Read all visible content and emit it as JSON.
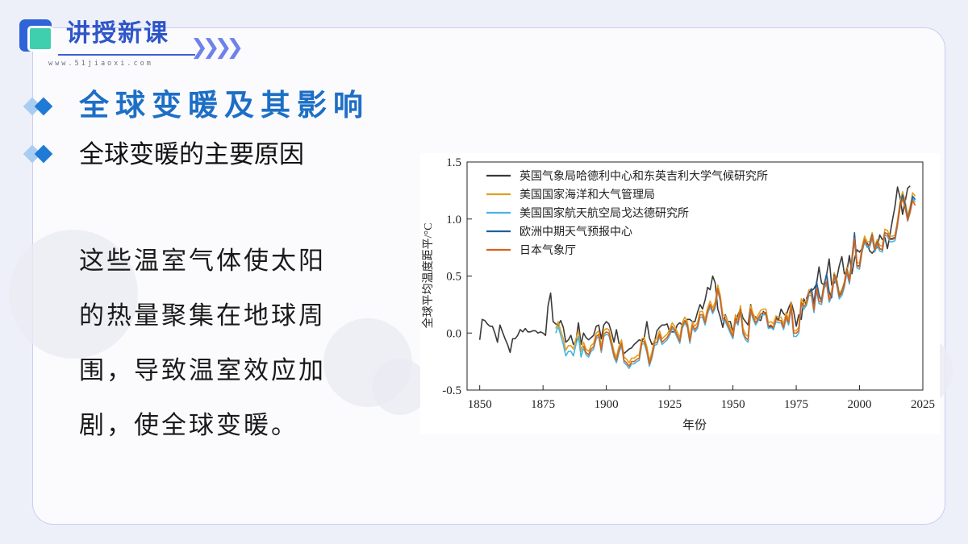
{
  "header": {
    "title": "讲授新课",
    "url": "www.51jiaoxi.com",
    "chevrons": "❯❯❯❯"
  },
  "headings": {
    "main": "全球变暖及其影响",
    "sub": "全球变暖的主要原因"
  },
  "body": {
    "text": "这些温室气体使太阳的热量聚集在地球周围，导致温室效应加剧，使全球变暖。"
  },
  "colors": {
    "accent_blue": "#1d6fc6",
    "header_blue": "#2f56c8",
    "logo_green": "#3fcfae"
  },
  "chart_data": {
    "type": "line",
    "xlabel": "年份",
    "ylabel": "全球平均温度距平/°C",
    "xlim": [
      1845,
      2025
    ],
    "ylim": [
      -0.5,
      1.5
    ],
    "x_ticks": [
      "1850",
      "1875",
      "1900",
      "1925",
      "1950",
      "1975",
      "2000",
      "2025"
    ],
    "y_ticks": [
      "1.5",
      "1.0",
      "0.5",
      "0.0",
      "-0.5"
    ],
    "grid": false,
    "legend_position": "top-left",
    "series": [
      {
        "name": "英国气象局哈德利中心和东英吉利大学气候研究所",
        "color": "#3a3a3a",
        "start_year": 1850,
        "values": [
          -0.06,
          0.12,
          0.11,
          0.08,
          0.06,
          0.06,
          0.0,
          -0.08,
          0.07,
          0.01,
          -0.05,
          -0.1,
          -0.17,
          -0.05,
          -0.05,
          -0.02,
          0.03,
          0.01,
          0.04,
          0.01,
          0.01,
          0.02,
          0.02,
          0.0,
          0.01,
          0.0,
          -0.02,
          0.24,
          0.35,
          0.1,
          0.08,
          0.07,
          0.11,
          0.05,
          -0.08,
          -0.06,
          -0.02,
          -0.1,
          -0.07,
          0.09,
          -0.1,
          0.0,
          -0.04,
          -0.06,
          -0.04,
          -0.02,
          0.06,
          0.07,
          -0.05,
          0.07,
          0.1,
          0.08,
          0.01,
          -0.08,
          0.03,
          -0.09,
          -0.11,
          -0.18,
          -0.16,
          -0.14,
          -0.13,
          -0.1,
          -0.08,
          -0.06,
          -0.07,
          -0.04,
          0.1,
          -0.04,
          -0.1,
          -0.08,
          0.02,
          0.05,
          0.07,
          0.07,
          0.08,
          0.01,
          0.01,
          0.01,
          0.07,
          0.09,
          0.07,
          0.09,
          0.12,
          0.12,
          0.1,
          0.1,
          0.18,
          0.25,
          0.21,
          0.29,
          0.4,
          0.38,
          0.5,
          0.44,
          0.21,
          0.14,
          0.05,
          0.16,
          0.1,
          0.1,
          0.01,
          0.09,
          0.16,
          0.21,
          0.13,
          0.1,
          0.07,
          0.25,
          0.15,
          0.14,
          0.12,
          0.11,
          0.19,
          0.16,
          0.05,
          0.06,
          0.03,
          0.14,
          0.11,
          0.21,
          0.17,
          0.15,
          0.22,
          0.27,
          0.19,
          0.06,
          0.16,
          0.12,
          0.3,
          0.25,
          0.36,
          0.37,
          0.39,
          0.43,
          0.58,
          0.44,
          0.42,
          0.51,
          0.65,
          0.42,
          0.44,
          0.48,
          0.59,
          0.67,
          0.52,
          0.54,
          0.68,
          0.52,
          0.65,
          0.73,
          0.71,
          0.74,
          0.79,
          0.79,
          0.72,
          0.7,
          0.73,
          0.75,
          0.86,
          0.82,
          0.84,
          0.74,
          0.86,
          0.99,
          1.11,
          1.28,
          1.19,
          1.04,
          1.15,
          1.27,
          1.29
        ]
      },
      {
        "name": "美国国家海洋和大气管理局",
        "color": "#e0a020",
        "start_year": 1880,
        "values": [
          0.04,
          0.1,
          0.02,
          -0.05,
          -0.15,
          -0.11,
          -0.11,
          -0.14,
          -0.05,
          0.02,
          -0.16,
          -0.08,
          -0.14,
          -0.16,
          -0.11,
          -0.09,
          0.0,
          0.02,
          -0.12,
          0.02,
          0.04,
          0.03,
          -0.06,
          -0.16,
          -0.21,
          -0.12,
          -0.06,
          -0.21,
          -0.23,
          -0.26,
          -0.22,
          -0.22,
          -0.2,
          -0.19,
          -0.05,
          -0.04,
          -0.12,
          -0.24,
          -0.17,
          -0.06,
          -0.05,
          0.02,
          -0.05,
          -0.03,
          -0.01,
          0.03,
          0.09,
          0.06,
          0.01,
          -0.04,
          0.09,
          0.14,
          0.1,
          -0.04,
          0.1,
          0.06,
          0.09,
          0.19,
          0.19,
          0.12,
          0.22,
          0.28,
          0.22,
          0.27,
          0.42,
          0.33,
          0.16,
          0.15,
          0.1,
          0.05,
          0.0,
          0.16,
          0.12,
          0.24,
          0.04,
          -0.01,
          -0.03,
          0.24,
          0.17,
          0.12,
          0.16,
          0.2,
          0.21,
          0.21,
          0.09,
          0.1,
          0.08,
          0.15,
          0.14,
          0.14,
          0.08,
          0.18,
          0.12,
          0.27,
          0.02,
          0.02,
          0.05,
          0.3,
          0.26,
          0.29,
          0.38,
          0.38,
          0.23,
          0.42,
          0.31,
          0.3,
          0.44,
          0.48,
          0.32,
          0.37,
          0.53,
          0.47,
          0.35,
          0.38,
          0.45,
          0.58,
          0.48,
          0.66,
          0.86,
          0.62,
          0.61,
          0.76,
          0.85,
          0.8,
          0.8,
          0.88,
          0.76,
          0.82,
          0.77,
          0.76,
          0.91,
          0.9,
          0.85,
          0.85,
          0.86,
          0.99,
          1.15,
          1.24,
          1.16,
          1.03,
          1.11,
          1.23,
          1.2
        ]
      },
      {
        "name": "美国国家航天航空局戈达德研究所",
        "color": "#49b4e0",
        "start_year": 1880,
        "values": [
          0.0,
          0.06,
          -0.02,
          -0.1,
          -0.2,
          -0.16,
          -0.16,
          -0.2,
          -0.1,
          -0.03,
          -0.21,
          -0.13,
          -0.19,
          -0.21,
          -0.16,
          -0.14,
          -0.05,
          -0.03,
          -0.17,
          -0.03,
          -0.01,
          -0.02,
          -0.11,
          -0.21,
          -0.26,
          -0.17,
          -0.11,
          -0.26,
          -0.28,
          -0.31,
          -0.27,
          -0.27,
          -0.25,
          -0.24,
          -0.1,
          -0.09,
          -0.17,
          -0.29,
          -0.22,
          -0.11,
          -0.1,
          -0.03,
          -0.1,
          -0.08,
          -0.06,
          -0.02,
          0.04,
          0.01,
          -0.04,
          -0.09,
          0.04,
          0.09,
          0.05,
          -0.09,
          0.05,
          0.01,
          0.04,
          0.14,
          0.14,
          0.07,
          0.17,
          0.23,
          0.17,
          0.22,
          0.37,
          0.28,
          0.11,
          0.1,
          0.05,
          0.0,
          -0.05,
          0.11,
          0.07,
          0.19,
          -0.01,
          -0.06,
          -0.08,
          0.19,
          0.12,
          0.07,
          0.11,
          0.15,
          0.16,
          0.16,
          0.04,
          0.05,
          0.03,
          0.1,
          0.09,
          0.09,
          0.03,
          0.13,
          0.07,
          0.22,
          -0.03,
          -0.03,
          0.0,
          0.25,
          0.21,
          0.24,
          0.33,
          0.33,
          0.18,
          0.37,
          0.26,
          0.25,
          0.39,
          0.43,
          0.27,
          0.32,
          0.48,
          0.42,
          0.3,
          0.33,
          0.4,
          0.53,
          0.43,
          0.61,
          0.81,
          0.57,
          0.56,
          0.71,
          0.8,
          0.75,
          0.75,
          0.83,
          0.71,
          0.77,
          0.72,
          0.71,
          0.86,
          0.85,
          0.8,
          0.8,
          0.81,
          0.94,
          1.1,
          1.19,
          1.11,
          0.98,
          1.06,
          1.18,
          1.15
        ]
      },
      {
        "name": "欧洲中期天气预报中心",
        "color": "#1f5f9e",
        "start_year": 1979,
        "values": [
          0.3,
          0.35,
          0.39,
          0.26,
          0.45,
          0.34,
          0.28,
          0.42,
          0.52,
          0.36,
          0.31,
          0.51,
          0.45,
          0.33,
          0.36,
          0.43,
          0.56,
          0.46,
          0.64,
          0.88,
          0.59,
          0.59,
          0.73,
          0.82,
          0.77,
          0.78,
          0.86,
          0.73,
          0.8,
          0.74,
          0.73,
          0.88,
          0.87,
          0.83,
          0.83,
          0.84,
          0.96,
          1.12,
          1.21,
          1.13,
          1.0,
          1.08,
          1.2,
          1.17
        ]
      },
      {
        "name": "日本气象厅",
        "color": "#d9601c",
        "start_year": 1891,
        "values": [
          -0.11,
          -0.17,
          -0.19,
          -0.14,
          -0.12,
          -0.03,
          -0.01,
          -0.15,
          -0.01,
          0.01,
          0.0,
          -0.09,
          -0.19,
          -0.24,
          -0.15,
          -0.09,
          -0.24,
          -0.26,
          -0.29,
          -0.25,
          -0.25,
          -0.23,
          -0.22,
          -0.08,
          -0.07,
          -0.15,
          -0.27,
          -0.2,
          -0.09,
          -0.08,
          -0.01,
          -0.08,
          -0.06,
          -0.04,
          0.0,
          0.06,
          0.03,
          -0.02,
          -0.07,
          0.06,
          0.11,
          0.07,
          -0.07,
          0.07,
          0.03,
          0.06,
          0.16,
          0.16,
          0.09,
          0.19,
          0.25,
          0.19,
          0.24,
          0.39,
          0.3,
          0.13,
          0.12,
          0.07,
          0.02,
          -0.03,
          0.13,
          0.09,
          0.21,
          0.01,
          -0.04,
          -0.06,
          0.21,
          0.14,
          0.09,
          0.13,
          0.17,
          0.18,
          0.18,
          0.06,
          0.07,
          0.05,
          0.12,
          0.11,
          0.11,
          0.05,
          0.15,
          0.09,
          0.24,
          0.0,
          0.0,
          0.02,
          0.27,
          0.23,
          0.26,
          0.35,
          0.35,
          0.2,
          0.39,
          0.28,
          0.27,
          0.41,
          0.45,
          0.29,
          0.34,
          0.5,
          0.44,
          0.32,
          0.35,
          0.42,
          0.55,
          0.45,
          0.63,
          0.83,
          0.59,
          0.58,
          0.73,
          0.82,
          0.77,
          0.77,
          0.85,
          0.73,
          0.79,
          0.74,
          0.73,
          0.88,
          0.87,
          0.82,
          0.82,
          0.83,
          0.96,
          1.1,
          1.18,
          1.1,
          0.99,
          1.06,
          1.16,
          1.12
        ]
      }
    ]
  }
}
